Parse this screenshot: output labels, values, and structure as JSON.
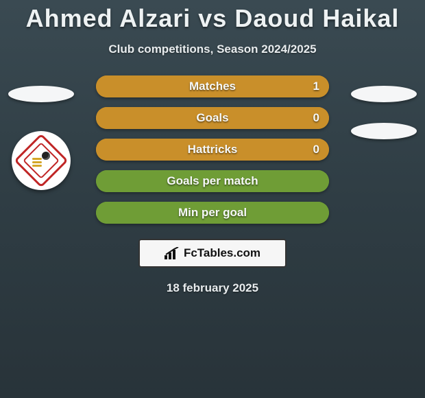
{
  "title": "Ahmed Alzari vs Daoud Haikal",
  "subtitle": "Club competitions, Season 2024/2025",
  "date": "18 february 2025",
  "site_text": "FcTables.com",
  "colors": {
    "left_fill": "#6f9d36",
    "right_fill": "#c98f2a",
    "row_bg": "#c98f2a",
    "row_bg_full": "#6f9d36"
  },
  "sides": {
    "left": {
      "has_badge": true
    },
    "right": {
      "has_badge": false,
      "ellipses": 2
    }
  },
  "stats": [
    {
      "label": "Matches",
      "left_val": "",
      "right_val": "1",
      "left_pct": 0,
      "right_pct": 100,
      "row_bg": "#c98f2a"
    },
    {
      "label": "Goals",
      "left_val": "",
      "right_val": "0",
      "left_pct": 0,
      "right_pct": 100,
      "row_bg": "#c98f2a"
    },
    {
      "label": "Hattricks",
      "left_val": "",
      "right_val": "0",
      "left_pct": 0,
      "right_pct": 100,
      "row_bg": "#c98f2a"
    },
    {
      "label": "Goals per match",
      "left_val": "",
      "right_val": "",
      "left_pct": 100,
      "right_pct": 0,
      "row_bg": "#6f9d36"
    },
    {
      "label": "Min per goal",
      "left_val": "",
      "right_val": "",
      "left_pct": 100,
      "right_pct": 0,
      "row_bg": "#6f9d36"
    }
  ]
}
